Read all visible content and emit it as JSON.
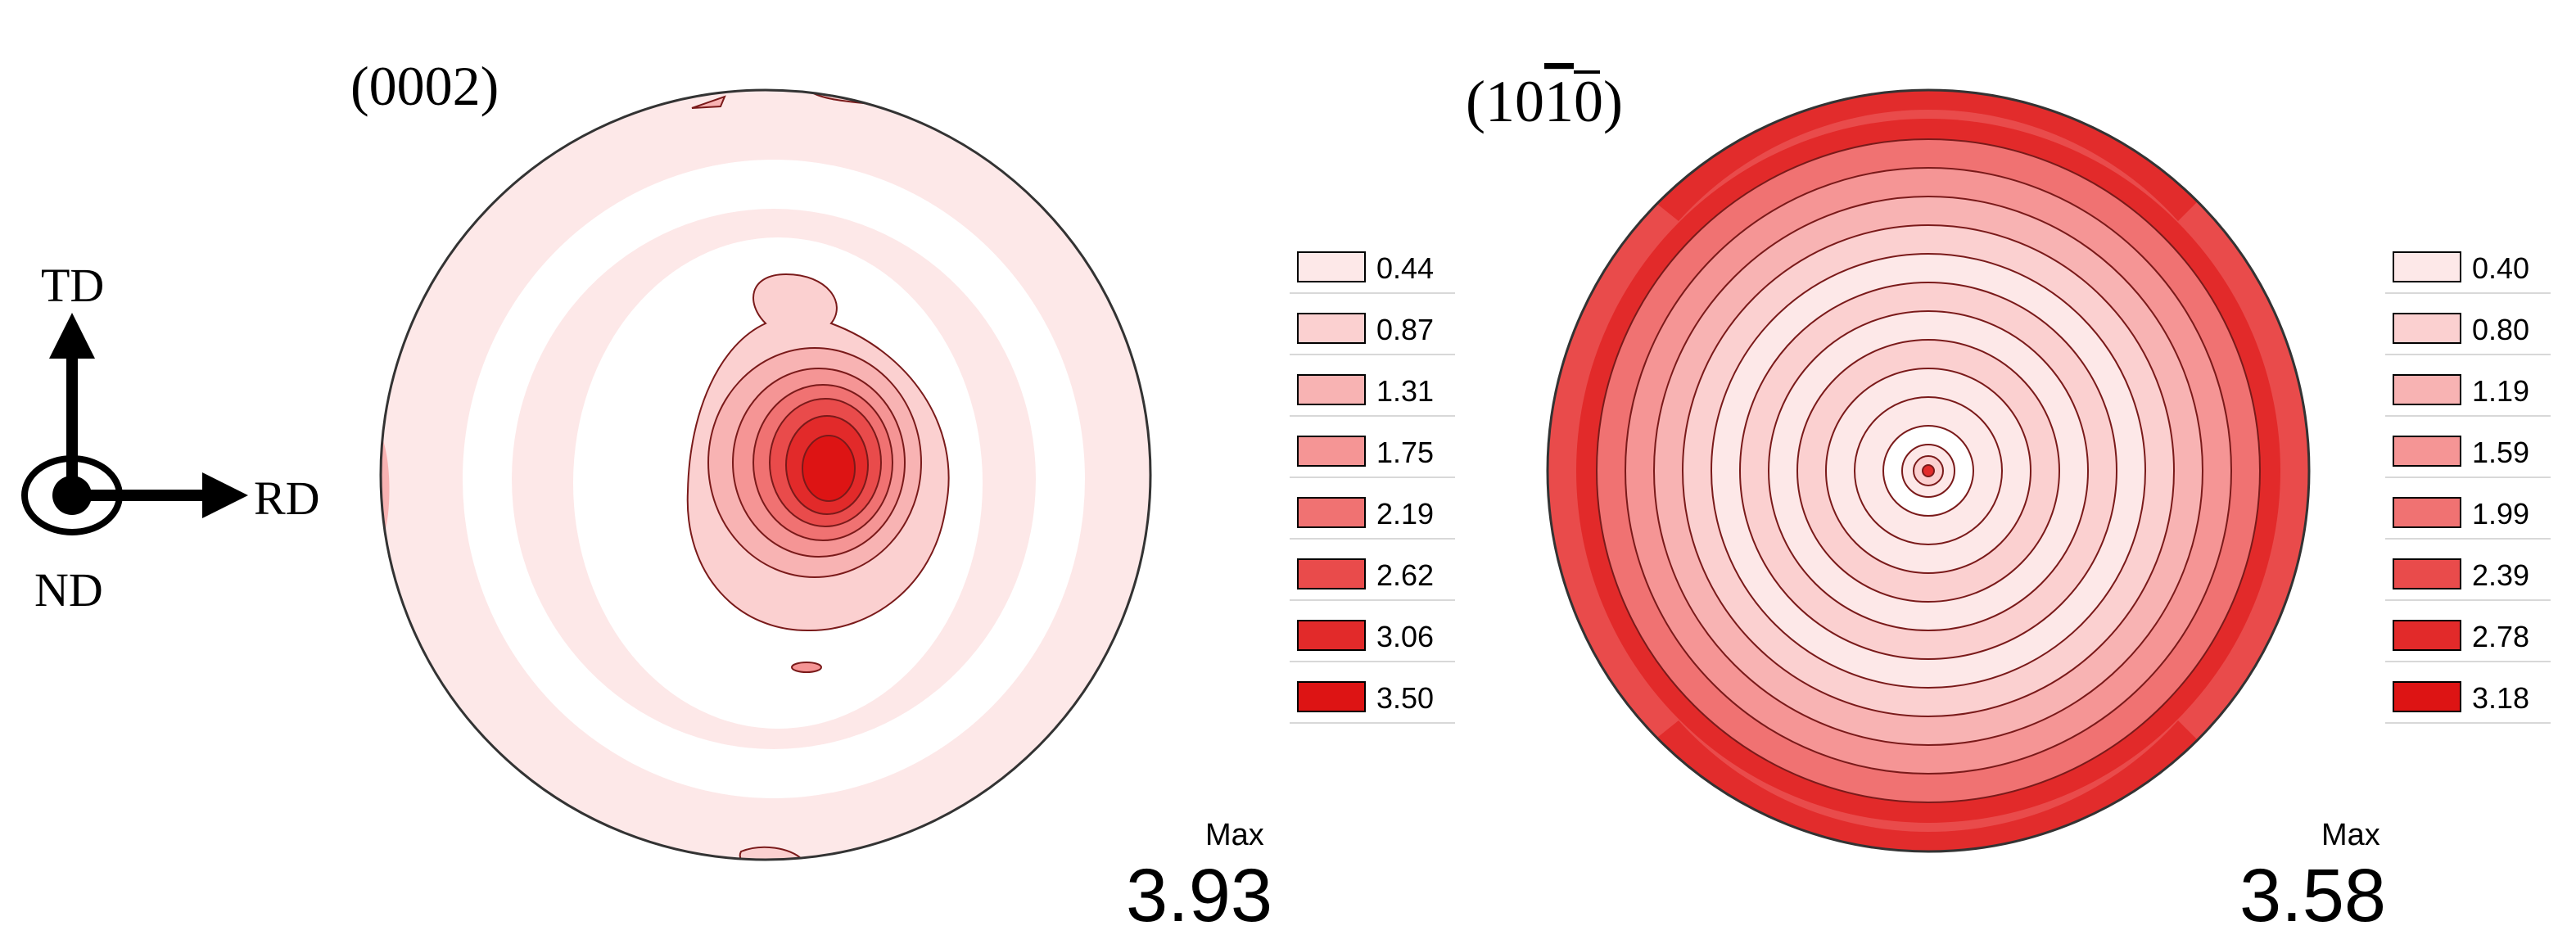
{
  "axes": {
    "td_label": "TD",
    "rd_label": "RD",
    "nd_label": "ND"
  },
  "pole_figures": [
    {
      "plane_label": "(0002)",
      "max_label": "Max",
      "max_value": "3.93",
      "legend": [
        "0.44",
        "0.87",
        "1.31",
        "1.75",
        "2.19",
        "2.62",
        "3.06",
        "3.50"
      ]
    },
    {
      "plane_label_parts": [
        "(10",
        "1",
        "0)"
      ],
      "max_label": "Max",
      "max_value": "3.58",
      "legend": [
        "0.40",
        "0.80",
        "1.19",
        "1.59",
        "1.99",
        "2.39",
        "2.78",
        "3.18"
      ]
    }
  ],
  "colors": {
    "level_fills": [
      "#fde8e8",
      "#fbd0d0",
      "#f8b3b3",
      "#f59595",
      "#f07272",
      "#e94b4b",
      "#e22a2a",
      "#dd1414"
    ],
    "contour_line": "#7a1a1a",
    "outline": "#000000"
  }
}
